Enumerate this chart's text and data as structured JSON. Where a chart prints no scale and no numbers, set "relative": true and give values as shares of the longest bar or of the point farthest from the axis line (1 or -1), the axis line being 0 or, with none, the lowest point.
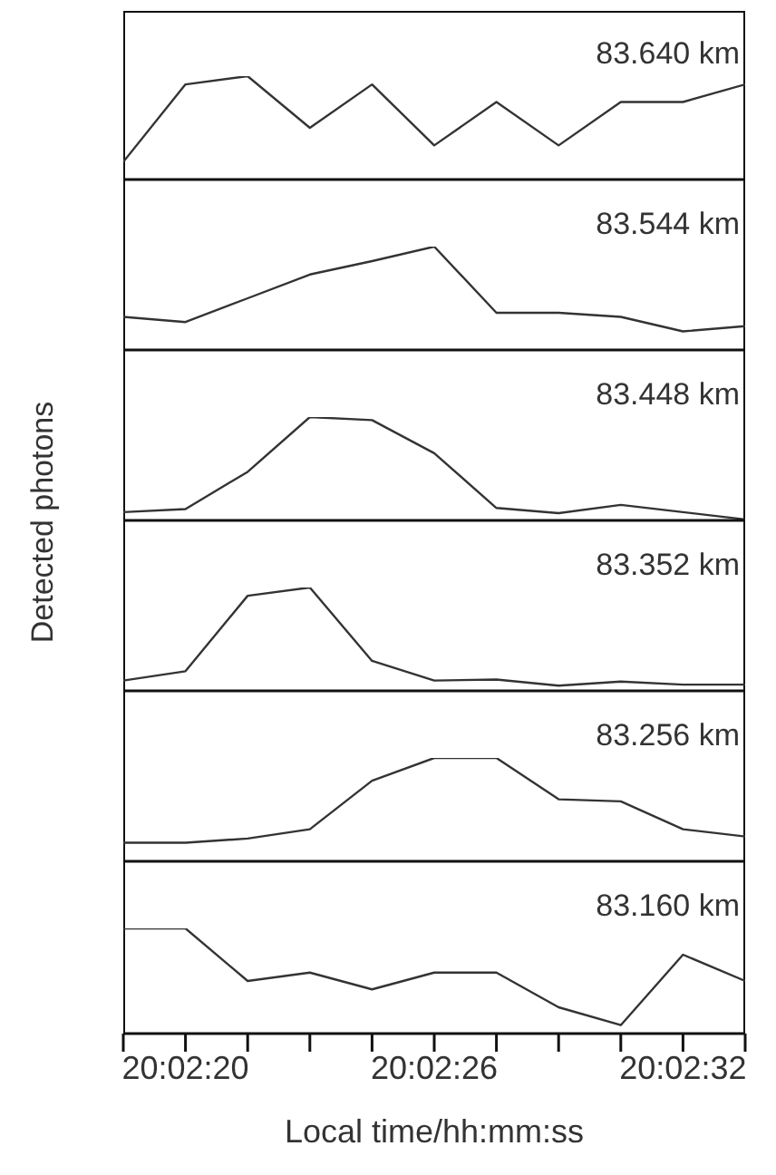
{
  "chart_data": [
    {
      "type": "line",
      "relative": true,
      "annotations": [
        "83.640 km"
      ],
      "series": [
        {
          "color": "#333333",
          "values": [
            0.17,
            0.92,
            1,
            0.5,
            0.92,
            0.33,
            0.75,
            0.33,
            0.75,
            0.75,
            0.92
          ]
        }
      ],
      "x": [
        20.03847222,
        20.03888889,
        20.03930556,
        20.03972222,
        20.04013889,
        20.04055556,
        20.04097222,
        20.04138889,
        20.04180556,
        20.04222222,
        20.04263889
      ],
      "xlim": [
        20.03847222,
        20.04263889
      ],
      "tick_labels": false,
      "marker": "none",
      "grid": false,
      "legend": false
    },
    {
      "type": "line",
      "relative": true,
      "annotations": [
        "83.544 km"
      ],
      "series": [
        {
          "color": "#333333",
          "values": [
            0.32,
            0.27,
            0.5,
            0.73,
            0.86,
            1,
            0.36,
            0.36,
            0.32,
            0.18,
            0.23
          ]
        }
      ],
      "x": [
        20.03847222,
        20.03888889,
        20.03930556,
        20.03972222,
        20.04013889,
        20.04055556,
        20.04097222,
        20.04138889,
        20.04180556,
        20.04222222,
        20.04263889
      ],
      "xlim": [
        20.03847222,
        20.04263889
      ],
      "tick_labels": false,
      "marker": "none",
      "grid": false,
      "legend": false
    },
    {
      "type": "line",
      "relative": true,
      "ylabel": "Detected photons",
      "annotations": [
        "83.448 km"
      ],
      "series": [
        {
          "color": "#333333",
          "values": [
            0.08,
            0.11,
            0.47,
            1,
            0.97,
            0.65,
            0.12,
            0.07,
            0.15,
            0.08,
            0.01
          ]
        }
      ],
      "x": [
        20.03847222,
        20.03888889,
        20.03930556,
        20.03972222,
        20.04013889,
        20.04055556,
        20.04097222,
        20.04138889,
        20.04180556,
        20.04222222,
        20.04263889
      ],
      "xlim": [
        20.03847222,
        20.04263889
      ],
      "tick_labels": false,
      "marker": "none",
      "grid": false,
      "legend": false
    },
    {
      "type": "line",
      "relative": true,
      "annotations": [
        "83.352 km"
      ],
      "series": [
        {
          "color": "#333333",
          "values": [
            0.1,
            0.19,
            0.92,
            1,
            0.29,
            0.1,
            0.11,
            0.05,
            0.09,
            0.06,
            0.06
          ]
        }
      ],
      "x": [
        20.03847222,
        20.03888889,
        20.03930556,
        20.03972222,
        20.04013889,
        20.04055556,
        20.04097222,
        20.04138889,
        20.04180556,
        20.04222222,
        20.04263889
      ],
      "xlim": [
        20.03847222,
        20.04263889
      ],
      "tick_labels": false,
      "marker": "none",
      "grid": false,
      "legend": false
    },
    {
      "type": "line",
      "relative": true,
      "annotations": [
        "83.256 km"
      ],
      "series": [
        {
          "color": "#333333",
          "values": [
            0.18,
            0.18,
            0.22,
            0.31,
            0.78,
            1,
            1,
            0.6,
            0.58,
            0.31,
            0.24
          ]
        }
      ],
      "x": [
        20.03847222,
        20.03888889,
        20.03930556,
        20.03972222,
        20.04013889,
        20.04055556,
        20.04097222,
        20.04138889,
        20.04180556,
        20.04222222,
        20.04263889
      ],
      "xlim": [
        20.03847222,
        20.04263889
      ],
      "tick_labels": false,
      "marker": "none",
      "grid": false,
      "legend": false
    },
    {
      "type": "line",
      "relative": true,
      "xlabel": "Local time/hh:mm:ss",
      "annotations": [
        "83.160 km"
      ],
      "series": [
        {
          "color": "#333333",
          "values": [
            1,
            1,
            0.5,
            0.58,
            0.42,
            0.58,
            0.58,
            0.25,
            0.08,
            0.75,
            0.5
          ]
        }
      ],
      "x": [
        20.03847222,
        20.03888889,
        20.03930556,
        20.03972222,
        20.04013889,
        20.04055556,
        20.04097222,
        20.04138889,
        20.04180556,
        20.04222222,
        20.04263889
      ],
      "xlim": [
        20.03847222,
        20.04263889
      ],
      "xticks": [
        {
          "value": 20.03847222,
          "label": null
        },
        {
          "value": 20.03888889,
          "label": "20:02:20"
        },
        {
          "value": 20.03930556,
          "label": null
        },
        {
          "value": 20.03972222,
          "label": null
        },
        {
          "value": 20.04013889,
          "label": null
        },
        {
          "value": 20.04055556,
          "label": "20:02:26"
        },
        {
          "value": 20.04097222,
          "label": null
        },
        {
          "value": 20.04138889,
          "label": null
        },
        {
          "value": 20.04180556,
          "label": null
        },
        {
          "value": 20.04222222,
          "label": "20:02:32"
        },
        {
          "value": 20.04263889,
          "label": null
        }
      ],
      "tick_labels": "x",
      "marker": "none",
      "grid": false,
      "legend": false
    }
  ]
}
